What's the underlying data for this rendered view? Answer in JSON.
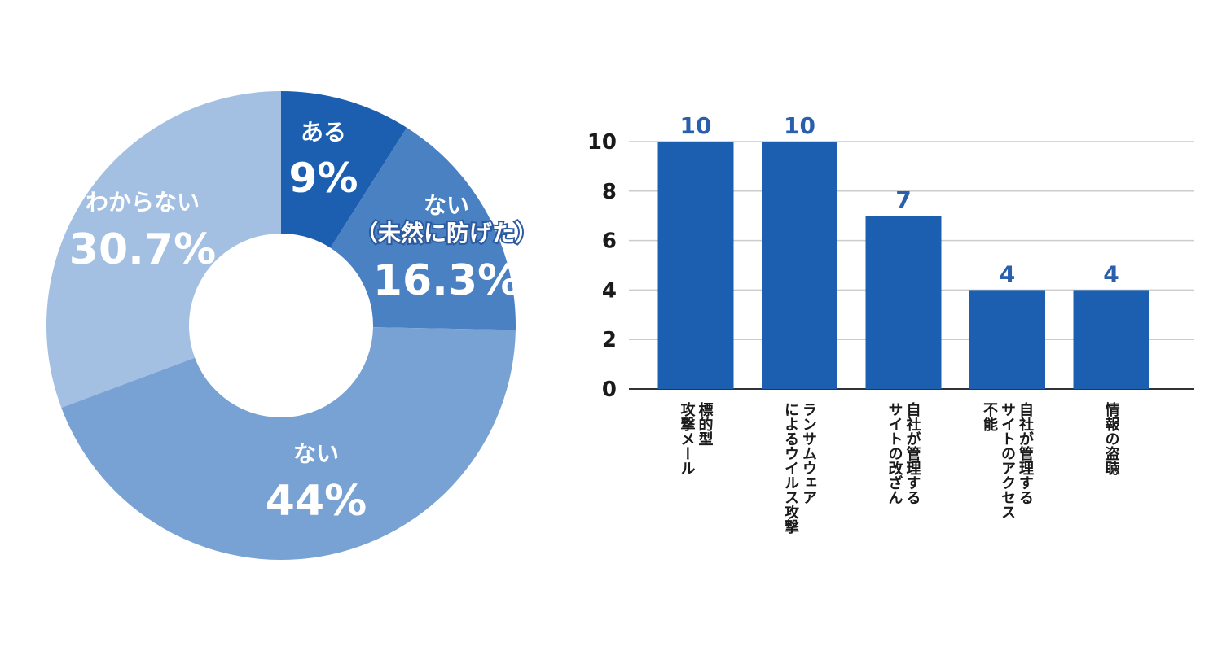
{
  "chart_data": [
    {
      "type": "pie",
      "donut": true,
      "slices": [
        {
          "label": "ある",
          "value": 9,
          "display": "9%",
          "color": "#1c5fb0"
        },
        {
          "label": "ない\n（未然に防げた）",
          "value": 16.3,
          "display": "16.3%",
          "color": "#4a81c3"
        },
        {
          "label": "ない",
          "value": 44,
          "display": "44%",
          "color": "#78a2d3"
        },
        {
          "label": "わからない",
          "value": 30.7,
          "display": "30.7%",
          "color": "#a3bfe1"
        }
      ],
      "start_angle": "12 o'clock",
      "direction": "clockwise"
    },
    {
      "type": "bar",
      "categories": [
        "標的型\n攻撃メール",
        "ランサムウェア\nによるウイルス攻撃",
        "自社が管理する\nサイトの改ざん",
        "自社が管理する\nサイトのアクセス\n不能",
        "情報の盗聴"
      ],
      "values": [
        10,
        10,
        7,
        4,
        4
      ],
      "ylim": [
        0,
        10
      ],
      "yticks": [
        0,
        2,
        4,
        6,
        8,
        10
      ],
      "grid": true,
      "bar_color": "#1c5fb0",
      "label_color": "#2a5fad",
      "category_label_orientation": "vertical"
    }
  ]
}
